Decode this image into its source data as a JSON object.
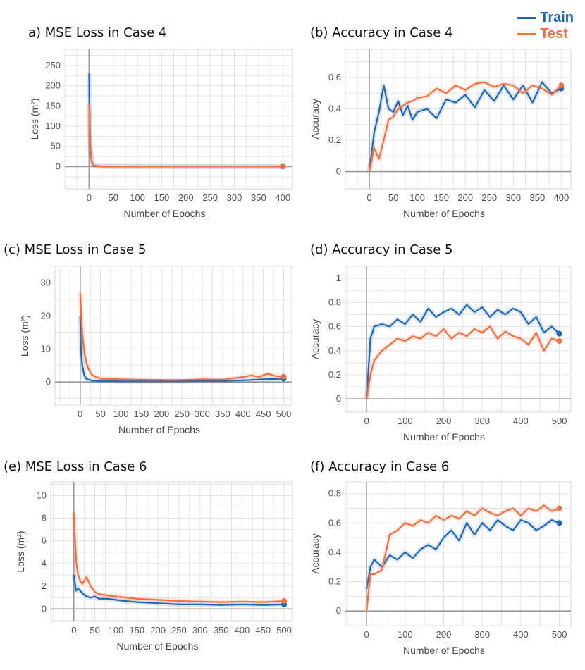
{
  "legend": {
    "items": [
      {
        "label": "Train",
        "color": "#1f67b1"
      },
      {
        "label": "Test",
        "color": "#f26f3f"
      }
    ]
  },
  "chart_data": [
    {
      "id": "a",
      "type": "line",
      "title": "a) MSE Loss in Case 4",
      "xlabel": "Number of Epochs",
      "ylabel": "Loss (m²)",
      "xlim": [
        -50,
        420
      ],
      "ylim": [
        -55,
        290
      ],
      "xticks": [
        0,
        50,
        100,
        150,
        200,
        250,
        300,
        350,
        400
      ],
      "yticks": [
        0,
        50,
        100,
        150,
        200,
        250
      ],
      "series": [
        {
          "name": "Train",
          "x": [
            0,
            1,
            2,
            3,
            5,
            8,
            12,
            20,
            30,
            50,
            100,
            200,
            300,
            400
          ],
          "y": [
            230,
            150,
            80,
            40,
            15,
            5,
            2,
            1,
            0.5,
            0.3,
            0.2,
            0.1,
            0.1,
            0.1
          ]
        },
        {
          "name": "Test",
          "x": [
            0,
            1,
            2,
            3,
            5,
            8,
            12,
            20,
            30,
            50,
            100,
            200,
            300,
            400
          ],
          "y": [
            155,
            120,
            70,
            35,
            14,
            5,
            2,
            1,
            0.5,
            0.3,
            0.2,
            0.1,
            0.1,
            0.1
          ]
        }
      ]
    },
    {
      "id": "b",
      "type": "line",
      "title": "(b) Accuracy in Case 4",
      "xlabel": "Number of Epochs",
      "ylabel": "Accuracy",
      "xlim": [
        -50,
        420
      ],
      "ylim": [
        -0.11,
        0.78
      ],
      "xticks": [
        0,
        50,
        100,
        150,
        200,
        250,
        300,
        350,
        400
      ],
      "yticks": [
        0,
        0.2,
        0.4,
        0.6
      ],
      "series": [
        {
          "name": "Train",
          "x": [
            0,
            10,
            20,
            30,
            40,
            50,
            60,
            70,
            80,
            90,
            100,
            120,
            140,
            160,
            180,
            200,
            220,
            240,
            260,
            280,
            300,
            320,
            340,
            360,
            380,
            400
          ],
          "y": [
            0,
            0.25,
            0.38,
            0.55,
            0.4,
            0.38,
            0.45,
            0.36,
            0.42,
            0.33,
            0.38,
            0.4,
            0.34,
            0.46,
            0.44,
            0.49,
            0.41,
            0.52,
            0.45,
            0.55,
            0.46,
            0.55,
            0.44,
            0.57,
            0.5,
            0.53
          ]
        },
        {
          "name": "Test",
          "x": [
            0,
            10,
            20,
            30,
            40,
            50,
            60,
            70,
            80,
            90,
            100,
            120,
            140,
            160,
            180,
            200,
            220,
            240,
            260,
            280,
            300,
            320,
            340,
            360,
            380,
            400
          ],
          "y": [
            0,
            0.15,
            0.08,
            0.2,
            0.33,
            0.35,
            0.4,
            0.42,
            0.44,
            0.45,
            0.47,
            0.48,
            0.53,
            0.5,
            0.55,
            0.52,
            0.56,
            0.57,
            0.54,
            0.56,
            0.55,
            0.5,
            0.55,
            0.53,
            0.49,
            0.55
          ]
        }
      ]
    },
    {
      "id": "c",
      "type": "line",
      "title": "(c) MSE Loss in Case 5",
      "xlabel": "Number of Epochs",
      "ylabel": "Loss (m²)",
      "xlim": [
        -62,
        520
      ],
      "ylim": [
        -7,
        35
      ],
      "xticks": [
        0,
        50,
        100,
        150,
        200,
        250,
        300,
        350,
        400,
        450,
        500
      ],
      "yticks": [
        0,
        10,
        20,
        30
      ],
      "series": [
        {
          "name": "Train",
          "x": [
            0,
            2,
            5,
            10,
            15,
            20,
            30,
            50,
            100,
            150,
            200,
            250,
            300,
            350,
            400,
            450,
            500
          ],
          "y": [
            20,
            10,
            5,
            2,
            1,
            0.7,
            0.4,
            0.3,
            0.2,
            0.2,
            0.2,
            0.2,
            0.3,
            0.3,
            0.5,
            0.8,
            1
          ]
        },
        {
          "name": "Test",
          "x": [
            0,
            2,
            5,
            10,
            15,
            20,
            25,
            30,
            40,
            50,
            100,
            150,
            200,
            250,
            300,
            350,
            400,
            420,
            440,
            460,
            480,
            500
          ],
          "y": [
            27,
            22,
            15,
            9,
            6,
            4,
            3,
            2,
            1.5,
            1,
            0.8,
            0.7,
            0.6,
            0.6,
            0.8,
            0.7,
            1.5,
            2,
            1.5,
            2.5,
            1.8,
            1.6
          ]
        }
      ]
    },
    {
      "id": "d",
      "type": "line",
      "title": "(d) Accuracy in Case 5",
      "xlabel": "Number of Epochs",
      "ylabel": "Accuracy",
      "xlim": [
        -55,
        530
      ],
      "ylim": [
        -0.11,
        1.1
      ],
      "xticks": [
        0,
        100,
        200,
        300,
        400,
        500
      ],
      "yticks": [
        0,
        0.2,
        0.4,
        0.6,
        0.8,
        1
      ],
      "series": [
        {
          "name": "Train",
          "x": [
            0,
            10,
            20,
            40,
            60,
            80,
            100,
            120,
            140,
            160,
            180,
            200,
            220,
            240,
            260,
            280,
            300,
            320,
            340,
            360,
            380,
            400,
            420,
            440,
            460,
            480,
            500
          ],
          "y": [
            0,
            0.5,
            0.6,
            0.62,
            0.6,
            0.66,
            0.62,
            0.7,
            0.64,
            0.75,
            0.68,
            0.72,
            0.75,
            0.7,
            0.78,
            0.72,
            0.76,
            0.68,
            0.74,
            0.7,
            0.75,
            0.72,
            0.62,
            0.68,
            0.55,
            0.6,
            0.54
          ]
        },
        {
          "name": "Test",
          "x": [
            0,
            10,
            20,
            40,
            60,
            80,
            100,
            120,
            140,
            160,
            180,
            200,
            220,
            240,
            260,
            280,
            300,
            320,
            340,
            360,
            380,
            400,
            420,
            440,
            460,
            480,
            500
          ],
          "y": [
            0,
            0.2,
            0.32,
            0.4,
            0.45,
            0.5,
            0.48,
            0.52,
            0.5,
            0.55,
            0.52,
            0.58,
            0.5,
            0.55,
            0.52,
            0.58,
            0.55,
            0.6,
            0.5,
            0.56,
            0.52,
            0.5,
            0.45,
            0.55,
            0.4,
            0.5,
            0.48
          ]
        }
      ]
    },
    {
      "id": "e",
      "type": "line",
      "title": "(e) MSE Loss in Case 6",
      "xlabel": "Number of Epochs",
      "ylabel": "Loss (m²)",
      "xlim": [
        -55,
        520
      ],
      "ylim": [
        -1.1,
        11.2
      ],
      "xticks": [
        0,
        50,
        100,
        150,
        200,
        250,
        300,
        350,
        400,
        450,
        500
      ],
      "yticks": [
        0,
        2,
        4,
        6,
        8,
        10
      ],
      "series": [
        {
          "name": "Train",
          "x": [
            0,
            5,
            10,
            20,
            30,
            40,
            50,
            60,
            80,
            100,
            120,
            150,
            200,
            250,
            300,
            350,
            400,
            450,
            500
          ],
          "y": [
            3,
            1.6,
            1.8,
            1.4,
            1.1,
            1.0,
            1.1,
            0.9,
            0.9,
            0.8,
            0.7,
            0.6,
            0.5,
            0.4,
            0.4,
            0.35,
            0.4,
            0.35,
            0.4
          ]
        },
        {
          "name": "Test",
          "x": [
            0,
            3,
            6,
            10,
            15,
            20,
            25,
            30,
            40,
            50,
            60,
            80,
            100,
            150,
            200,
            250,
            300,
            350,
            400,
            450,
            500
          ],
          "y": [
            8.5,
            6,
            4,
            3,
            2.5,
            2.2,
            2.5,
            2.8,
            2.0,
            1.5,
            1.3,
            1.2,
            1.1,
            0.9,
            0.8,
            0.7,
            0.65,
            0.6,
            0.65,
            0.6,
            0.7
          ]
        }
      ]
    },
    {
      "id": "f",
      "type": "line",
      "title": "(f) Accuracy in Case 6",
      "xlabel": "Number of Epochs",
      "ylabel": "Accuracy",
      "xlim": [
        -55,
        530
      ],
      "ylim": [
        -0.1,
        0.88
      ],
      "xticks": [
        0,
        100,
        200,
        300,
        400,
        500
      ],
      "yticks": [
        0,
        0.2,
        0.4,
        0.6,
        0.8
      ],
      "series": [
        {
          "name": "Train",
          "x": [
            0,
            10,
            20,
            40,
            60,
            80,
            100,
            120,
            140,
            160,
            180,
            200,
            220,
            240,
            260,
            280,
            300,
            320,
            340,
            360,
            380,
            400,
            420,
            440,
            460,
            480,
            500
          ],
          "y": [
            0.15,
            0.3,
            0.35,
            0.3,
            0.38,
            0.35,
            0.4,
            0.36,
            0.42,
            0.45,
            0.42,
            0.5,
            0.55,
            0.48,
            0.6,
            0.52,
            0.6,
            0.55,
            0.62,
            0.58,
            0.55,
            0.62,
            0.6,
            0.55,
            0.58,
            0.62,
            0.6
          ]
        },
        {
          "name": "Test",
          "x": [
            0,
            10,
            20,
            40,
            60,
            80,
            100,
            120,
            140,
            160,
            180,
            200,
            220,
            240,
            260,
            280,
            300,
            320,
            340,
            360,
            380,
            400,
            420,
            440,
            460,
            480,
            500
          ],
          "y": [
            0,
            0.25,
            0.25,
            0.28,
            0.52,
            0.55,
            0.6,
            0.58,
            0.62,
            0.6,
            0.65,
            0.62,
            0.65,
            0.63,
            0.68,
            0.65,
            0.7,
            0.67,
            0.65,
            0.68,
            0.7,
            0.65,
            0.7,
            0.68,
            0.72,
            0.68,
            0.7
          ]
        }
      ]
    }
  ]
}
